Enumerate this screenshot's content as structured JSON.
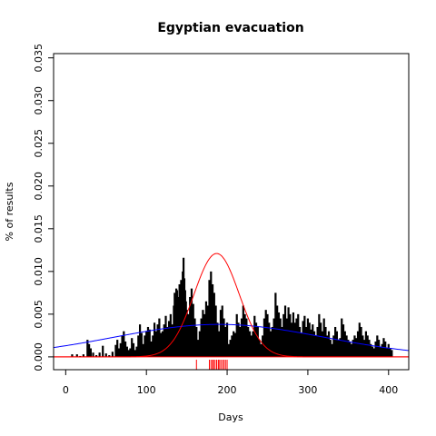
{
  "chart_data": {
    "type": "bar",
    "title": "Egyptian evacuation",
    "xlabel": "Days",
    "ylabel": "% of results",
    "xlim": [
      -15,
      425
    ],
    "ylim": [
      -0.0015,
      0.0355
    ],
    "x_ticks": [
      0,
      100,
      200,
      300,
      400
    ],
    "y_ticks": [
      0.0,
      0.005,
      0.01,
      0.015,
      0.02,
      0.025,
      0.03,
      0.035
    ],
    "x_tick_labels": [
      "0",
      "100",
      "200",
      "300",
      "400"
    ],
    "y_tick_labels": [
      "0.000",
      "0.005",
      "0.010",
      "0.015",
      "0.020",
      "0.025",
      "0.030",
      "0.035"
    ],
    "grid": false,
    "colors": {
      "bars": "#000000",
      "peak_curve": "#ff0000",
      "broad_curve": "#0000ff",
      "rug": "#ff0000",
      "axes": "#000000"
    },
    "bars": {
      "x": [
        8,
        14,
        18,
        22,
        27,
        29,
        31,
        34,
        38,
        42,
        46,
        50,
        54,
        58,
        62,
        64,
        66,
        68,
        70,
        72,
        74,
        76,
        78,
        80,
        82,
        84,
        86,
        88,
        90,
        92,
        94,
        96,
        98,
        100,
        102,
        104,
        106,
        108,
        110,
        112,
        114,
        116,
        118,
        120,
        122,
        124,
        126,
        128,
        130,
        132,
        134,
        135,
        136,
        137,
        138,
        139,
        140,
        141,
        142,
        143,
        144,
        145,
        146,
        147,
        148,
        149,
        150,
        152,
        154,
        156,
        158,
        160,
        162,
        164,
        166,
        168,
        170,
        172,
        174,
        176,
        178,
        180,
        182,
        184,
        186,
        188,
        190,
        192,
        194,
        196,
        198,
        200,
        202,
        204,
        206,
        208,
        210,
        212,
        214,
        216,
        218,
        220,
        222,
        224,
        226,
        228,
        230,
        232,
        234,
        236,
        238,
        240,
        242,
        244,
        246,
        248,
        250,
        252,
        254,
        256,
        258,
        260,
        262,
        264,
        266,
        268,
        270,
        272,
        274,
        276,
        278,
        280,
        282,
        284,
        286,
        288,
        290,
        292,
        294,
        296,
        298,
        300,
        302,
        304,
        306,
        308,
        310,
        312,
        314,
        316,
        318,
        320,
        322,
        324,
        326,
        328,
        330,
        332,
        334,
        336,
        338,
        340,
        342,
        344,
        346,
        348,
        350,
        352,
        354,
        356,
        358,
        360,
        362,
        364,
        366,
        368,
        370,
        372,
        374,
        376,
        378,
        380,
        382,
        384,
        386,
        388,
        390,
        392,
        394,
        396,
        398,
        400,
        402,
        404
      ],
      "values": [
        0.0003,
        0.0003,
        0.0001,
        0.0003,
        0.002,
        0.0015,
        0.001,
        0.0005,
        0.0002,
        0.0005,
        0.0013,
        0.0004,
        0.0002,
        0.0006,
        0.0014,
        0.002,
        0.001,
        0.0016,
        0.0025,
        0.003,
        0.0018,
        0.0012,
        0.0008,
        0.001,
        0.0022,
        0.0016,
        0.0008,
        0.0012,
        0.0025,
        0.0038,
        0.0028,
        0.0015,
        0.0025,
        0.003,
        0.0035,
        0.0032,
        0.0018,
        0.0025,
        0.004,
        0.003,
        0.0038,
        0.0045,
        0.0028,
        0.003,
        0.0038,
        0.0048,
        0.0035,
        0.0042,
        0.005,
        0.0038,
        0.006,
        0.0075,
        0.0068,
        0.008,
        0.0078,
        0.0062,
        0.007,
        0.0085,
        0.0072,
        0.009,
        0.0082,
        0.01,
        0.0116,
        0.0092,
        0.0078,
        0.0065,
        0.0055,
        0.005,
        0.007,
        0.008,
        0.0062,
        0.0045,
        0.0035,
        0.002,
        0.003,
        0.0045,
        0.0055,
        0.005,
        0.0065,
        0.006,
        0.009,
        0.01,
        0.0085,
        0.0075,
        0.006,
        0.004,
        0.003,
        0.0055,
        0.006,
        0.0045,
        0.0035,
        0.004,
        0.0015,
        0.002,
        0.0025,
        0.003,
        0.0028,
        0.005,
        0.004,
        0.0035,
        0.0045,
        0.006,
        0.005,
        0.0045,
        0.0035,
        0.003,
        0.0025,
        0.003,
        0.0048,
        0.004,
        0.0035,
        0.002,
        0.0015,
        0.0025,
        0.0045,
        0.0055,
        0.005,
        0.004,
        0.003,
        0.0035,
        0.0045,
        0.0075,
        0.006,
        0.0052,
        0.0045,
        0.0035,
        0.005,
        0.006,
        0.0045,
        0.0058,
        0.005,
        0.004,
        0.0052,
        0.004,
        0.0045,
        0.005,
        0.0035,
        0.0028,
        0.0042,
        0.0048,
        0.0035,
        0.0045,
        0.004,
        0.0032,
        0.0038,
        0.003,
        0.0025,
        0.0035,
        0.005,
        0.004,
        0.003,
        0.0045,
        0.0035,
        0.0025,
        0.003,
        0.002,
        0.0015,
        0.0025,
        0.0035,
        0.003,
        0.002,
        0.0022,
        0.0045,
        0.0038,
        0.003,
        0.0025,
        0.002,
        0.0018,
        0.0015,
        0.002,
        0.0025,
        0.0022,
        0.003,
        0.004,
        0.0035,
        0.0025,
        0.002,
        0.003,
        0.0025,
        0.002,
        0.0015,
        0.0012,
        0.001,
        0.0018,
        0.0025,
        0.002,
        0.0012,
        0.0015,
        0.0022,
        0.0018,
        0.001,
        0.0015,
        0.001,
        0.0008
      ]
    },
    "peak_curve": {
      "mean": 187,
      "sd": 28,
      "peak": 0.0121
    },
    "broad_curve": {
      "mean": 190,
      "sd": 130,
      "peak": 0.0038
    },
    "rug_x": [
      162,
      178,
      180,
      182,
      183,
      185,
      187,
      189,
      190,
      192,
      194,
      196,
      198,
      200
    ]
  }
}
